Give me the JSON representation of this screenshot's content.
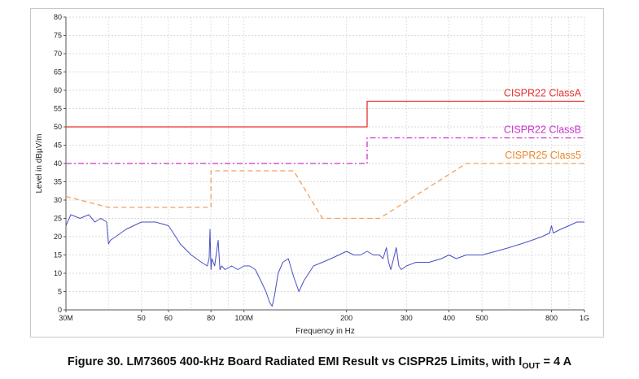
{
  "caption": {
    "prefix": "Figure 30. LM73605 400-kHz Board Radiated EMI Result vs CISPR25 Limits, with I",
    "subscript": "OUT",
    "suffix": " = 4 A"
  },
  "chart_data": {
    "type": "line",
    "title": "",
    "xlabel": "Frequency in Hz",
    "ylabel": "Level in dBµV/m",
    "x_scale": "log",
    "xlim": [
      30000000,
      1000000000
    ],
    "ylim": [
      0,
      80
    ],
    "y_ticks": [
      0,
      5,
      10,
      15,
      20,
      25,
      30,
      35,
      40,
      45,
      50,
      55,
      60,
      65,
      70,
      75,
      80
    ],
    "x_ticks": [
      {
        "value": 30000000,
        "label": "30M"
      },
      {
        "value": 50000000,
        "label": "50"
      },
      {
        "value": 60000000,
        "label": "60"
      },
      {
        "value": 80000000,
        "label": "80"
      },
      {
        "value": 100000000,
        "label": "100M"
      },
      {
        "value": 200000000,
        "label": "200"
      },
      {
        "value": 300000000,
        "label": "300"
      },
      {
        "value": 400000000,
        "label": "400"
      },
      {
        "value": 500000000,
        "label": "500"
      },
      {
        "value": 800000000,
        "label": "800"
      },
      {
        "value": 1000000000,
        "label": "1G"
      }
    ],
    "grid": true,
    "series": [
      {
        "name": "CISPR22 ClassA",
        "color": "#e8312f",
        "style": "solid",
        "x": [
          30000000,
          230000000,
          230000000,
          1000000000
        ],
        "y": [
          50,
          50,
          57,
          57
        ]
      },
      {
        "name": "CISPR22 ClassB",
        "color": "#cc33cc",
        "style": "dashdot",
        "x": [
          30000000,
          230000000,
          230000000,
          1000000000
        ],
        "y": [
          40,
          40,
          47,
          47
        ]
      },
      {
        "name": "CISPR25 Class5",
        "color": "#f0a060",
        "style": "dashed",
        "x": [
          30000000,
          40000000,
          80000000,
          80000000,
          140000000,
          170000000,
          230000000,
          250000000,
          450000000,
          1000000000
        ],
        "y": [
          31,
          28,
          28,
          38,
          38,
          25,
          25,
          25,
          40,
          40
        ]
      },
      {
        "name": "",
        "color": "#4a4fc4",
        "style": "solid",
        "x": [
          30000000,
          31000000,
          33000000,
          35000000,
          36500000,
          38000000,
          39500000,
          40000000,
          40500000,
          42000000,
          45000000,
          50000000,
          55000000,
          60000000,
          62000000,
          65000000,
          70000000,
          75000000,
          78000000,
          79000000,
          79500000,
          80000000,
          80500000,
          82000000,
          84000000,
          85000000,
          86000000,
          88000000,
          92000000,
          96000000,
          100000000,
          104000000,
          108000000,
          112000000,
          116000000,
          119000000,
          121000000,
          123000000,
          126000000,
          130000000,
          135000000,
          140000000,
          145000000,
          150000000,
          155000000,
          160000000,
          170000000,
          180000000,
          190000000,
          200000000,
          210000000,
          220000000,
          230000000,
          240000000,
          250000000,
          256000000,
          262000000,
          266000000,
          270000000,
          275000000,
          280000000,
          285000000,
          290000000,
          300000000,
          320000000,
          350000000,
          380000000,
          400000000,
          420000000,
          450000000,
          500000000,
          550000000,
          600000000,
          650000000,
          700000000,
          750000000,
          790000000,
          800000000,
          810000000,
          850000000,
          900000000,
          950000000,
          1000000000
        ],
        "y": [
          23,
          26,
          25,
          26,
          24,
          25,
          24,
          18,
          19,
          20,
          22,
          24,
          24,
          23,
          21,
          18,
          15,
          13,
          12,
          14,
          22,
          11,
          14,
          12,
          19,
          11,
          12,
          11,
          12,
          11,
          12,
          12,
          11,
          8,
          5,
          2,
          1,
          4,
          10,
          13,
          14,
          9,
          5,
          8,
          10,
          12,
          13,
          14,
          15,
          16,
          15,
          15,
          16,
          15,
          15,
          14,
          17,
          13,
          11,
          14,
          17,
          12,
          11,
          12,
          13,
          13,
          14,
          15,
          14,
          15,
          15,
          16,
          17,
          18,
          19,
          20,
          21,
          23,
          21,
          22,
          23,
          24,
          24
        ]
      }
    ],
    "annotations": [
      {
        "text": "CISPR22 ClassA",
        "color": "#e8312f"
      },
      {
        "text": "CISPR22 ClassB",
        "color": "#cc33cc"
      },
      {
        "text": "CISPR25 Class5",
        "color": "#e8862a"
      }
    ]
  }
}
